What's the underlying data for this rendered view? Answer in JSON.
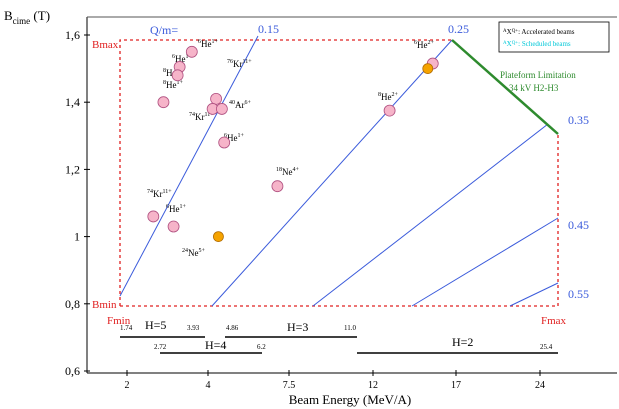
{
  "chart_data": {
    "type": "scatter",
    "xlabel": "Beam Energy (MeV/A)",
    "ylabel_main": "B",
    "ylabel_sub": "cime",
    "ylabel_unit": " (T)",
    "x_ticks": [
      "2",
      "4",
      "7.5",
      "12",
      "17",
      "24"
    ],
    "y_ticks": [
      "0,6",
      "0,8",
      "1",
      "1,2",
      "1,4",
      "1,6"
    ],
    "ylim": [
      0.6,
      1.65
    ],
    "qm_header": "Q/m=",
    "qm_lines": [
      {
        "label": "0.15",
        "color": "#3b5bdb"
      },
      {
        "label": "0.25",
        "color": "#3b5bdb"
      },
      {
        "label": "0.35",
        "color": "#3b5bdb"
      },
      {
        "label": "0.45",
        "color": "#3b5bdb"
      },
      {
        "label": "0.55",
        "color": "#3b5bdb"
      }
    ],
    "envelope_labels": {
      "bmax": "Bmax",
      "bmin": "Bmin",
      "fmin": "Fmin",
      "fmax": "Fmax"
    },
    "platform_limitation": {
      "line1": "Plateform Limitation",
      "line2": "34 kV H2-H3",
      "color": "#2e8b2e"
    },
    "legend": {
      "accelerated": {
        "mass": "A",
        "sym": "X",
        "charge": "Q+",
        "text": ": Accelerated beams"
      },
      "scheduled": {
        "mass": "A",
        "sym": "X",
        "charge": "Q+",
        "text": ": Scheduled beams",
        "color": "#00c8d8"
      }
    },
    "beams_accelerated": [
      {
        "mass": "6",
        "sym": "He",
        "charge": "1+",
        "x": 3.6,
        "y": 1.55
      },
      {
        "mass": "6",
        "sym": "He",
        "charge": "1+",
        "x": 3.3,
        "y": 1.505
      },
      {
        "mass": "8",
        "sym": "He",
        "charge": "1+",
        "x": 3.25,
        "y": 1.48
      },
      {
        "mass": "8",
        "sym": "He",
        "charge": "1+",
        "x": 2.9,
        "y": 1.4
      },
      {
        "mass": "76",
        "sym": "Kr",
        "charge": "11+",
        "x": 4.35,
        "y": 1.41
      },
      {
        "mass": "74",
        "sym": "Kr",
        "charge": "11+",
        "x": 4.2,
        "y": 1.38
      },
      {
        "mass": "40",
        "sym": "Ar",
        "charge": "6+",
        "x": 4.6,
        "y": 1.38
      },
      {
        "mass": "6",
        "sym": "He",
        "charge": "1+",
        "x": 4.7,
        "y": 1.28
      },
      {
        "mass": "18",
        "sym": "Ne",
        "charge": "4+",
        "x": 7.0,
        "y": 1.15
      },
      {
        "mass": "74",
        "sym": "Kr",
        "charge": "11+",
        "x": 2.65,
        "y": 1.06
      },
      {
        "mass": "6",
        "sym": "He",
        "charge": "1+",
        "x": 3.15,
        "y": 1.03
      },
      {
        "mass": "8",
        "sym": "He",
        "charge": "2+",
        "x": 13.0,
        "y": 1.375
      },
      {
        "mass": "6",
        "sym": "He",
        "charge": "2+",
        "x": 15.6,
        "y": 1.515
      }
    ],
    "beams_scheduled": [
      {
        "mass": "24",
        "sym": "Ne",
        "charge": "5+",
        "x": 4.45,
        "y": 1.0
      },
      {
        "mass": "",
        "sym": "",
        "charge": "",
        "x": 15.3,
        "y": 1.5
      }
    ],
    "harmonics": [
      {
        "label": "H=5",
        "min": "1.74",
        "max": "3.93"
      },
      {
        "label": "H=4",
        "min": "2.72",
        "max": "6.2"
      },
      {
        "label": "H=3",
        "min": "4.86",
        "max": "11.0"
      },
      {
        "label": "H=2",
        "min": "",
        "max": "25.4"
      }
    ]
  }
}
